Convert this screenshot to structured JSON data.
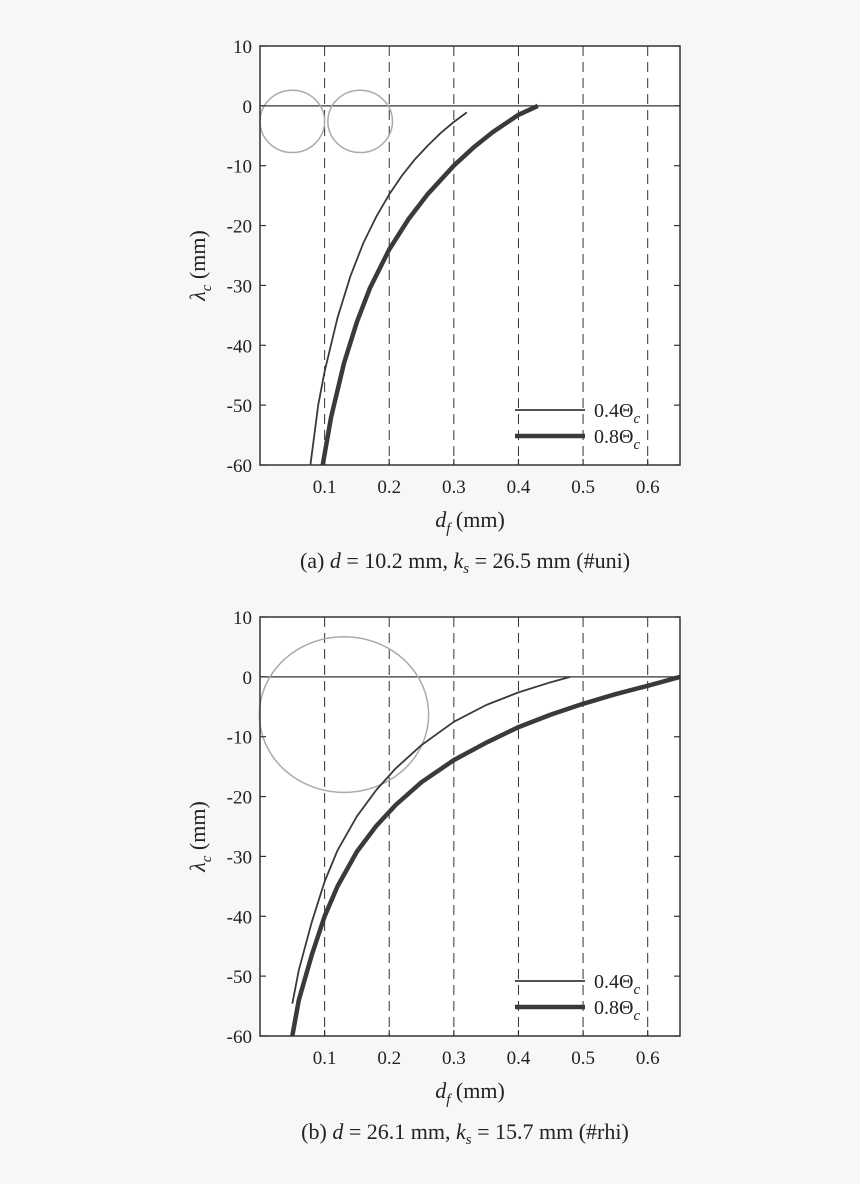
{
  "chart_data": [
    {
      "type": "line",
      "caption": {
        "prefix": "(a) ",
        "d_var": "d",
        "d_val": " = 10.2 mm, ",
        "k_var": "k",
        "k_sub": "s",
        "k_val": " = 26.5 mm (#uni)"
      },
      "xlabel": {
        "var": "d",
        "sub": "f",
        "unit": " (mm)"
      },
      "ylabel": {
        "var": "λ",
        "sub": "c",
        "unit": " (mm)"
      },
      "xlim": [
        0,
        0.65
      ],
      "ylim": [
        -60,
        10
      ],
      "xticks": [
        0.1,
        0.2,
        0.3,
        0.4,
        0.5,
        0.6
      ],
      "xtick_labels": [
        "0.1",
        "0.2",
        "0.3",
        "0.4",
        "0.5",
        "0.6"
      ],
      "yticks": [
        10,
        0,
        -10,
        -20,
        -30,
        -40,
        -50,
        -60
      ],
      "ytick_labels": [
        "10",
        "0",
        "-10",
        "-20",
        "-30",
        "-40",
        "-50",
        "-60"
      ],
      "grid": "vertical-dashed",
      "legend_position": "bottom-right",
      "annotations": [
        {
          "shape": "circle",
          "cx": 0.05,
          "cy": -2.6,
          "rx": 0.05,
          "ry": 5.2
        },
        {
          "shape": "circle",
          "cx": 0.155,
          "cy": -2.6,
          "rx": 0.05,
          "ry": 5.2
        }
      ],
      "series": [
        {
          "name": {
            "coef": "0.4",
            "sym": "Θ",
            "sub": "c"
          },
          "line_width": "thin",
          "x": [
            0.078,
            0.09,
            0.1,
            0.12,
            0.14,
            0.16,
            0.18,
            0.2,
            0.22,
            0.24,
            0.26,
            0.28,
            0.3,
            0.32
          ],
          "y": [
            -60,
            -50,
            -44.4,
            -35.4,
            -28.4,
            -22.9,
            -18.5,
            -14.8,
            -11.6,
            -8.9,
            -6.6,
            -4.5,
            -2.7,
            -1.1
          ]
        },
        {
          "name": {
            "coef": "0.8",
            "sym": "Θ",
            "sub": "c"
          },
          "line_width": "thick",
          "x": [
            0.097,
            0.11,
            0.13,
            0.15,
            0.17,
            0.2,
            0.23,
            0.26,
            0.3,
            0.33,
            0.36,
            0.4,
            0.43
          ],
          "y": [
            -60,
            -52,
            -43,
            -36.1,
            -30.5,
            -24,
            -18.9,
            -14.7,
            -10,
            -7,
            -4.4,
            -1.5,
            0
          ]
        }
      ]
    },
    {
      "type": "line",
      "caption": {
        "prefix": "(b) ",
        "d_var": "d",
        "d_val": " = 26.1 mm, ",
        "k_var": "k",
        "k_sub": "s",
        "k_val": " = 15.7 mm (#rhi)"
      },
      "xlabel": {
        "var": "d",
        "sub": "f",
        "unit": " (mm)"
      },
      "ylabel": {
        "var": "λ",
        "sub": "c",
        "unit": " (mm)"
      },
      "xlim": [
        0,
        0.65
      ],
      "ylim": [
        -60,
        10
      ],
      "xticks": [
        0.1,
        0.2,
        0.3,
        0.4,
        0.5,
        0.6
      ],
      "xtick_labels": [
        "0.1",
        "0.2",
        "0.3",
        "0.4",
        "0.5",
        "0.6"
      ],
      "yticks": [
        10,
        0,
        -10,
        -20,
        -30,
        -40,
        -50,
        -60
      ],
      "ytick_labels": [
        "10",
        "0",
        "-10",
        "-20",
        "-30",
        "-40",
        "-50",
        "-60"
      ],
      "grid": "vertical-dashed",
      "legend_position": "bottom-right",
      "annotations": [
        {
          "shape": "circle",
          "cx": 0.13,
          "cy": -6.3,
          "rx": 0.131,
          "ry": 13
        }
      ],
      "series": [
        {
          "name": {
            "coef": "0.4",
            "sym": "Θ",
            "sub": "c"
          },
          "line_width": "thin",
          "x": [
            0.05,
            0.06,
            0.08,
            0.1,
            0.12,
            0.15,
            0.18,
            0.21,
            0.25,
            0.3,
            0.35,
            0.4,
            0.45,
            0.48
          ],
          "y": [
            -54.6,
            -49,
            -41,
            -34.2,
            -29,
            -23.3,
            -18.9,
            -15.3,
            -11.4,
            -7.5,
            -4.7,
            -2.6,
            -0.9,
            0
          ]
        },
        {
          "name": {
            "coef": "0.8",
            "sym": "Θ",
            "sub": "c"
          },
          "line_width": "thick",
          "x": [
            0.05,
            0.06,
            0.08,
            0.1,
            0.12,
            0.15,
            0.18,
            0.21,
            0.25,
            0.3,
            0.35,
            0.4,
            0.45,
            0.5,
            0.55,
            0.6,
            0.65
          ],
          "y": [
            -60,
            -54,
            -46.5,
            -40,
            -35,
            -29.2,
            -24.9,
            -21.4,
            -17.6,
            -13.9,
            -11,
            -8.4,
            -6.3,
            -4.5,
            -2.9,
            -1.5,
            0
          ]
        }
      ]
    }
  ]
}
